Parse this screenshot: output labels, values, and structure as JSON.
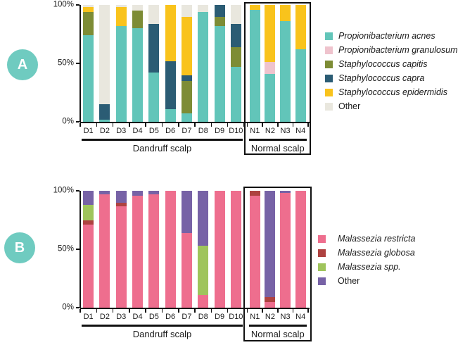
{
  "figure": {
    "background": "#ffffff",
    "panels": {
      "a": {
        "badge": "A",
        "badge_color": "#6FCBC0"
      },
      "b": {
        "badge": "B",
        "badge_color": "#6FCBC0"
      }
    }
  },
  "chart_data": [
    {
      "id": "a",
      "type": "bar",
      "stacked": true,
      "units": "percent",
      "ylim": [
        0,
        100
      ],
      "yticks": [
        {
          "label": "100%",
          "value": 100
        },
        {
          "label": "50%",
          "value": 50
        },
        {
          "label": "0%",
          "value": 0
        }
      ],
      "grid": false,
      "legend_position": "right",
      "series": [
        {
          "name": "Propionibacterium acnes",
          "color": "#62C5B9",
          "italic": true
        },
        {
          "name": "Propionibacterium granulosum",
          "color": "#EFC3CD",
          "italic": true
        },
        {
          "name": "Staphylococcus capitis",
          "color": "#7D8C35",
          "italic": true
        },
        {
          "name": "Staphylococcus capra",
          "color": "#2B5C74",
          "italic": true
        },
        {
          "name": "Staphylococcus epidermidis",
          "color": "#F9C31C",
          "italic": true
        },
        {
          "name": "Other",
          "color": "#E9E7DE",
          "italic": false
        }
      ],
      "groups": [
        {
          "label": "Dandruff scalp",
          "boxed": false,
          "categories": [
            "D1",
            "D2",
            "D3",
            "D4",
            "D5",
            "D6",
            "D7",
            "D8",
            "D9",
            "D10"
          ],
          "values": [
            [
              74,
              0,
              20,
              0,
              4,
              2
            ],
            [
              2,
              0,
              0,
              13,
              0,
              85
            ],
            [
              82,
              0,
              0,
              0,
              16,
              2
            ],
            [
              80,
              0,
              15,
              0,
              0,
              5
            ],
            [
              42,
              0,
              0,
              42,
              0,
              16
            ],
            [
              11,
              0,
              0,
              41,
              48,
              0
            ],
            [
              7,
              0,
              28,
              5,
              50,
              10
            ],
            [
              94,
              0,
              0,
              0,
              0,
              6
            ],
            [
              82,
              0,
              8,
              10,
              0,
              0
            ],
            [
              47,
              0,
              17,
              20,
              0,
              16
            ]
          ]
        },
        {
          "label": "Normal scalp",
          "boxed": true,
          "categories": [
            "N1",
            "N2",
            "N3",
            "N4"
          ],
          "values": [
            [
              96,
              0,
              0,
              0,
              4,
              0
            ],
            [
              41,
              10,
              0,
              0,
              49,
              0
            ],
            [
              86,
              0,
              0,
              0,
              14,
              0
            ],
            [
              62,
              0,
              0,
              0,
              38,
              0
            ]
          ]
        }
      ]
    },
    {
      "id": "b",
      "type": "bar",
      "stacked": true,
      "units": "percent",
      "ylim": [
        0,
        100
      ],
      "yticks": [
        {
          "label": "100%",
          "value": 100
        },
        {
          "label": "50%",
          "value": 50
        },
        {
          "label": "0%",
          "value": 0
        }
      ],
      "grid": false,
      "legend_position": "right",
      "series": [
        {
          "name": "Malassezia restricta",
          "color": "#EE6E8E",
          "italic": true
        },
        {
          "name": "Malassezia globosa",
          "color": "#AE4240",
          "italic": true
        },
        {
          "name": "Malassezia spp.",
          "color": "#9FC45C",
          "italic": true
        },
        {
          "name": "Other",
          "color": "#7762A6",
          "italic": false
        }
      ],
      "groups": [
        {
          "label": "Dandruff scalp",
          "boxed": false,
          "categories": [
            "D1",
            "D2",
            "D3",
            "D4",
            "D5",
            "D6",
            "D7",
            "D8",
            "D9",
            "D10"
          ],
          "values": [
            [
              71,
              4,
              13,
              12
            ],
            [
              97,
              0,
              0,
              3
            ],
            [
              87,
              3,
              0,
              10
            ],
            [
              96,
              0,
              0,
              4
            ],
            [
              97,
              0,
              0,
              3
            ],
            [
              100,
              0,
              0,
              0
            ],
            [
              64,
              0,
              0,
              36
            ],
            [
              11,
              0,
              42,
              47
            ],
            [
              100,
              0,
              0,
              0
            ],
            [
              100,
              0,
              0,
              0
            ]
          ]
        },
        {
          "label": "Normal scalp",
          "boxed": true,
          "categories": [
            "N1",
            "N2",
            "N3",
            "N4"
          ],
          "values": [
            [
              96,
              4,
              0,
              0
            ],
            [
              5,
              4,
              0,
              91
            ],
            [
              98,
              0,
              0,
              2
            ],
            [
              100,
              0,
              0,
              0
            ]
          ]
        }
      ]
    }
  ]
}
